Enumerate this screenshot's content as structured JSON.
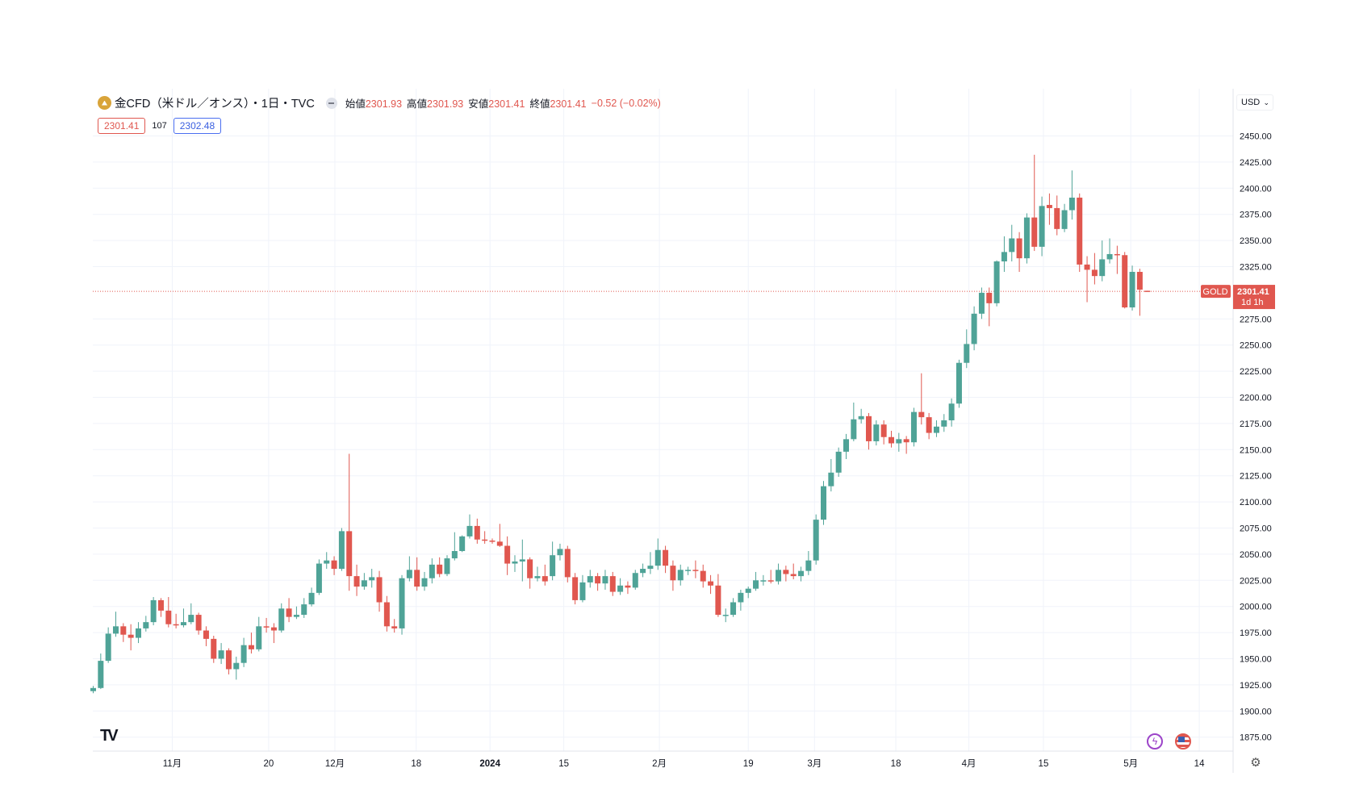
{
  "legend": {
    "symbol_icon": "gold-coin-icon",
    "title": "金CFD（米ドル／オンス）・1日・TVC",
    "open_label": "始値",
    "open": "2301.93",
    "high_label": "高値",
    "high": "2301.93",
    "low_label": "安値",
    "low": "2301.41",
    "close_label": "終値",
    "close": "2301.41",
    "change": "−0.52 (−0.02%)",
    "bid": "2301.41",
    "spread": "107",
    "ask": "2302.48"
  },
  "currency": "USD",
  "last_price_tag": {
    "symbol": "GOLD",
    "price": "2301.41",
    "countdown": "1d 1h"
  },
  "colors": {
    "up": "#4fa397",
    "down": "#e0574f",
    "grid": "#f0f3fa",
    "last_line": "#e0574f"
  },
  "chart_data": {
    "type": "candlestick",
    "title": "金CFD（米ドル／オンス）・1日・TVC",
    "ylim": [
      1860,
      2462
    ],
    "last_price": 2301.41,
    "y_ticks": [
      "2450.00",
      "2425.00",
      "2400.00",
      "2375.00",
      "2350.00",
      "2325.00",
      "2275.00",
      "2250.00",
      "2225.00",
      "2200.00",
      "2175.00",
      "2150.00",
      "2125.00",
      "2100.00",
      "2075.00",
      "2050.00",
      "2025.00",
      "2000.00",
      "1975.00",
      "1950.00",
      "1925.00",
      "1900.00",
      "1875.00"
    ],
    "x_ticks": [
      {
        "label": "11月",
        "bar": 10.5,
        "bold": false
      },
      {
        "label": "20",
        "bar": 23.3,
        "bold": false
      },
      {
        "label": "12月",
        "bar": 32.1,
        "bold": false
      },
      {
        "label": "18",
        "bar": 42.9,
        "bold": false
      },
      {
        "label": "2024",
        "bar": 52.7,
        "bold": true
      },
      {
        "label": "15",
        "bar": 62.5,
        "bold": false
      },
      {
        "label": "2月",
        "bar": 75.2,
        "bold": false
      },
      {
        "label": "19",
        "bar": 87.0,
        "bold": false
      },
      {
        "label": "3月",
        "bar": 95.8,
        "bold": false
      },
      {
        "label": "18",
        "bar": 106.6,
        "bold": false
      },
      {
        "label": "4月",
        "bar": 116.3,
        "bold": false
      },
      {
        "label": "15",
        "bar": 126.2,
        "bold": false
      },
      {
        "label": "5月",
        "bar": 137.8,
        "bold": false
      },
      {
        "label": "14",
        "bar": 146.9,
        "bold": false
      }
    ],
    "ohlc": [
      [
        1919,
        1924,
        1917,
        1922
      ],
      [
        1922,
        1955,
        1921,
        1948
      ],
      [
        1948,
        1980,
        1946,
        1974
      ],
      [
        1974,
        1995,
        1971,
        1981
      ],
      [
        1981,
        1984,
        1966,
        1973
      ],
      [
        1973,
        1983,
        1958,
        1970
      ],
      [
        1970,
        1985,
        1965,
        1979
      ],
      [
        1979,
        1991,
        1976,
        1985
      ],
      [
        1985,
        2009,
        1982,
        2006
      ],
      [
        2006,
        2008,
        1990,
        1996
      ],
      [
        1996,
        2009,
        1980,
        1983
      ],
      [
        1983,
        1993,
        1979,
        1982
      ],
      [
        1982,
        1998,
        1980,
        1985
      ],
      [
        1985,
        2003,
        1983,
        1992
      ],
      [
        1992,
        1994,
        1973,
        1977
      ],
      [
        1977,
        1981,
        1962,
        1969
      ],
      [
        1969,
        1972,
        1946,
        1950
      ],
      [
        1950,
        1965,
        1945,
        1958
      ],
      [
        1958,
        1960,
        1935,
        1940
      ],
      [
        1940,
        1952,
        1930,
        1946
      ],
      [
        1946,
        1970,
        1942,
        1963
      ],
      [
        1963,
        1975,
        1955,
        1959
      ],
      [
        1959,
        1990,
        1957,
        1981
      ],
      [
        1981,
        1989,
        1975,
        1980
      ],
      [
        1980,
        1984,
        1965,
        1977
      ],
      [
        1977,
        2003,
        1975,
        1998
      ],
      [
        1998,
        2008,
        1985,
        1990
      ],
      [
        1990,
        2000,
        1988,
        1992
      ],
      [
        1992,
        2008,
        1989,
        2002
      ],
      [
        2002,
        2018,
        2000,
        2013
      ],
      [
        2013,
        2045,
        2011,
        2041
      ],
      [
        2041,
        2052,
        2036,
        2044
      ],
      [
        2044,
        2048,
        2030,
        2036
      ],
      [
        2036,
        2075,
        2034,
        2072
      ],
      [
        2072,
        2146,
        2015,
        2029
      ],
      [
        2029,
        2040,
        2010,
        2019
      ],
      [
        2019,
        2032,
        2016,
        2025
      ],
      [
        2025,
        2036,
        2018,
        2028
      ],
      [
        2028,
        2034,
        1995,
        2004
      ],
      [
        2004,
        2010,
        1976,
        1981
      ],
      [
        1981,
        1988,
        1975,
        1979
      ],
      [
        1979,
        2030,
        1973,
        2027
      ],
      [
        2027,
        2048,
        2024,
        2035
      ],
      [
        2035,
        2047,
        2015,
        2019
      ],
      [
        2019,
        2033,
        2015,
        2027
      ],
      [
        2027,
        2046,
        2022,
        2040
      ],
      [
        2040,
        2047,
        2028,
        2031
      ],
      [
        2031,
        2049,
        2029,
        2046
      ],
      [
        2046,
        2071,
        2044,
        2053
      ],
      [
        2053,
        2068,
        2052,
        2067
      ],
      [
        2067,
        2088,
        2065,
        2077
      ],
      [
        2077,
        2084,
        2060,
        2064
      ],
      [
        2064,
        2072,
        2060,
        2063
      ],
      [
        2063,
        2065,
        2060,
        2062
      ],
      [
        2062,
        2079,
        2057,
        2058
      ],
      [
        2058,
        2067,
        2030,
        2041
      ],
      [
        2041,
        2049,
        2033,
        2043
      ],
      [
        2043,
        2064,
        2024,
        2045
      ],
      [
        2045,
        2047,
        2017,
        2027
      ],
      [
        2027,
        2038,
        2024,
        2029
      ],
      [
        2029,
        2040,
        2020,
        2024
      ],
      [
        2029,
        2062,
        2025,
        2049
      ],
      [
        2049,
        2060,
        2044,
        2055
      ],
      [
        2055,
        2058,
        2023,
        2028
      ],
      [
        2028,
        2032,
        2002,
        2006
      ],
      [
        2006,
        2030,
        2004,
        2023
      ],
      [
        2023,
        2035,
        2018,
        2029
      ],
      [
        2029,
        2032,
        2015,
        2022
      ],
      [
        2022,
        2035,
        2016,
        2029
      ],
      [
        2029,
        2033,
        2010,
        2014
      ],
      [
        2014,
        2027,
        2011,
        2020
      ],
      [
        2020,
        2024,
        2012,
        2018
      ],
      [
        2018,
        2035,
        2016,
        2032
      ],
      [
        2032,
        2041,
        2028,
        2036
      ],
      [
        2036,
        2052,
        2031,
        2039
      ],
      [
        2039,
        2065,
        2035,
        2054
      ],
      [
        2054,
        2058,
        2032,
        2039
      ],
      [
        2039,
        2044,
        2015,
        2025
      ],
      [
        2025,
        2040,
        2020,
        2035
      ],
      [
        2035,
        2038,
        2030,
        2035
      ],
      [
        2035,
        2044,
        2027,
        2034
      ],
      [
        2034,
        2040,
        2018,
        2024
      ],
      [
        2024,
        2030,
        2012,
        2020
      ],
      [
        2020,
        2031,
        1990,
        1992
      ],
      [
        1992,
        1998,
        1985,
        1992
      ],
      [
        1992,
        2008,
        1990,
        2004
      ],
      [
        2004,
        2016,
        1996,
        2013
      ],
      [
        2013,
        2019,
        2008,
        2017
      ],
      [
        2017,
        2033,
        2015,
        2025
      ],
      [
        2025,
        2030,
        2020,
        2025
      ],
      [
        2025,
        2035,
        2022,
        2024
      ],
      [
        2024,
        2041,
        2021,
        2035
      ],
      [
        2035,
        2039,
        2024,
        2031
      ],
      [
        2031,
        2041,
        2026,
        2029
      ],
      [
        2029,
        2038,
        2024,
        2034
      ],
      [
        2034,
        2053,
        2030,
        2044
      ],
      [
        2044,
        2088,
        2040,
        2083
      ],
      [
        2083,
        2120,
        2078,
        2115
      ],
      [
        2115,
        2141,
        2110,
        2128
      ],
      [
        2128,
        2152,
        2124,
        2148
      ],
      [
        2148,
        2165,
        2141,
        2160
      ],
      [
        2160,
        2195,
        2158,
        2179
      ],
      [
        2179,
        2189,
        2175,
        2182
      ],
      [
        2182,
        2185,
        2150,
        2158
      ],
      [
        2158,
        2178,
        2154,
        2174
      ],
      [
        2174,
        2178,
        2155,
        2162
      ],
      [
        2162,
        2168,
        2152,
        2156
      ],
      [
        2156,
        2166,
        2148,
        2160
      ],
      [
        2160,
        2163,
        2146,
        2157
      ],
      [
        2157,
        2190,
        2153,
        2186
      ],
      [
        2186,
        2223,
        2174,
        2181
      ],
      [
        2181,
        2185,
        2160,
        2166
      ],
      [
        2166,
        2178,
        2162,
        2172
      ],
      [
        2172,
        2184,
        2167,
        2178
      ],
      [
        2178,
        2199,
        2172,
        2194
      ],
      [
        2194,
        2236,
        2190,
        2233
      ],
      [
        2233,
        2265,
        2228,
        2251
      ],
      [
        2251,
        2287,
        2245,
        2280
      ],
      [
        2280,
        2305,
        2275,
        2300
      ],
      [
        2300,
        2305,
        2268,
        2290
      ],
      [
        2290,
        2331,
        2287,
        2330
      ],
      [
        2330,
        2354,
        2320,
        2339
      ],
      [
        2339,
        2365,
        2330,
        2352
      ],
      [
        2352,
        2358,
        2320,
        2333
      ],
      [
        2333,
        2376,
        2328,
        2372
      ],
      [
        2372,
        2432,
        2340,
        2344
      ],
      [
        2344,
        2392,
        2335,
        2383
      ],
      [
        2384,
        2395,
        2365,
        2381
      ],
      [
        2381,
        2393,
        2355,
        2361
      ],
      [
        2361,
        2385,
        2358,
        2379
      ],
      [
        2379,
        2417,
        2370,
        2391
      ],
      [
        2391,
        2395,
        2320,
        2327
      ],
      [
        2327,
        2335,
        2291,
        2322
      ],
      [
        2322,
        2338,
        2308,
        2316
      ],
      [
        2316,
        2350,
        2311,
        2332
      ],
      [
        2332,
        2352,
        2328,
        2337
      ],
      [
        2337,
        2345,
        2318,
        2336
      ],
      [
        2336,
        2339,
        2285,
        2286
      ],
      [
        2286,
        2326,
        2283,
        2320
      ],
      [
        2320,
        2323,
        2278,
        2303
      ],
      [
        2301.93,
        2301.93,
        2301.41,
        2301.41
      ]
    ]
  }
}
